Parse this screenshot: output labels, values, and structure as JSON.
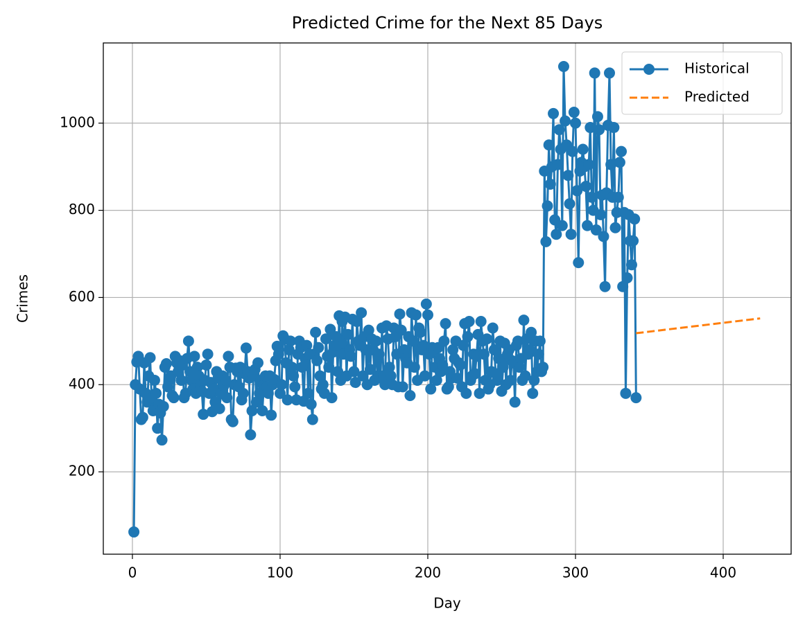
{
  "chart_data": {
    "type": "line",
    "title": "Predicted Crime for the Next 85 Days",
    "x_label": "Day",
    "y_label": "Crimes",
    "xlim": [
      -19.7,
      446
    ],
    "ylim": [
      11,
      1184
    ],
    "xticks": [
      0,
      100,
      200,
      300,
      400
    ],
    "yticks": [
      200,
      400,
      600,
      800,
      1000
    ],
    "grid": true,
    "legend": "upper right",
    "series": [
      {
        "name": "Historical",
        "color": "#1f77b4",
        "marker": "o",
        "linestyle": "solid",
        "x": [
          1,
          2,
          3,
          4,
          5,
          6,
          7,
          8,
          9,
          10,
          11,
          12,
          13,
          14,
          15,
          16,
          17,
          18,
          19,
          20,
          21,
          22,
          23,
          24,
          25,
          26,
          27,
          28,
          29,
          30,
          31,
          32,
          33,
          34,
          35,
          36,
          37,
          38,
          39,
          40,
          41,
          42,
          43,
          44,
          45,
          46,
          47,
          48,
          49,
          50,
          51,
          52,
          53,
          54,
          55,
          56,
          57,
          58,
          59,
          60,
          61,
          62,
          63,
          64,
          65,
          66,
          67,
          68,
          69,
          70,
          71,
          72,
          73,
          74,
          75,
          76,
          77,
          78,
          79,
          80,
          81,
          82,
          83,
          84,
          85,
          86,
          87,
          88,
          89,
          90,
          91,
          92,
          93,
          94,
          95,
          96,
          97,
          98,
          99,
          100,
          101,
          102,
          103,
          104,
          105,
          106,
          107,
          108,
          109,
          110,
          111,
          112,
          113,
          114,
          115,
          116,
          117,
          118,
          119,
          120,
          121,
          122,
          123,
          124,
          125,
          126,
          127,
          128,
          129,
          130,
          131,
          132,
          133,
          134,
          135,
          136,
          137,
          138,
          139,
          140,
          141,
          142,
          143,
          144,
          145,
          146,
          147,
          148,
          149,
          150,
          151,
          152,
          153,
          154,
          155,
          156,
          157,
          158,
          159,
          160,
          161,
          162,
          163,
          164,
          165,
          166,
          167,
          168,
          169,
          170,
          171,
          172,
          173,
          174,
          175,
          176,
          177,
          178,
          179,
          180,
          181,
          182,
          183,
          184,
          185,
          186,
          187,
          188,
          189,
          190,
          191,
          192,
          193,
          194,
          195,
          196,
          197,
          198,
          199,
          200,
          201,
          202,
          203,
          204,
          205,
          206,
          207,
          208,
          209,
          210,
          211,
          212,
          213,
          214,
          215,
          216,
          217,
          218,
          219,
          220,
          221,
          222,
          223,
          224,
          225,
          226,
          227,
          228,
          229,
          230,
          231,
          232,
          233,
          234,
          235,
          236,
          237,
          238,
          239,
          240,
          241,
          242,
          243,
          244,
          245,
          246,
          247,
          248,
          249,
          250,
          251,
          252,
          253,
          254,
          255,
          256,
          257,
          258,
          259,
          260,
          261,
          262,
          263,
          264,
          265,
          266,
          267,
          268,
          269,
          270,
          271,
          272,
          273,
          274,
          275,
          276,
          277,
          278,
          279,
          280,
          281,
          282,
          283,
          284,
          285,
          286,
          287,
          288,
          289,
          290,
          291,
          292,
          293,
          294,
          295,
          296,
          297,
          298,
          299,
          300,
          301,
          302,
          303,
          304,
          305,
          306,
          307,
          308,
          309,
          310,
          311,
          312,
          313,
          314,
          315,
          316,
          317,
          318,
          319,
          320,
          321,
          322,
          323,
          324,
          325,
          326,
          327,
          328,
          329,
          330,
          331,
          332,
          333,
          334,
          335,
          336,
          337,
          338,
          339,
          340,
          341
        ],
        "values": [
          62,
          400,
          452,
          465,
          390,
          320,
          325,
          450,
          380,
          360,
          420,
          462,
          370,
          340,
          410,
          380,
          300,
          355,
          335,
          273,
          350,
          440,
          448,
          395,
          410,
          420,
          375,
          370,
          465,
          450,
          430,
          455,
          410,
          445,
          370,
          380,
          460,
          500,
          430,
          410,
          390,
          465,
          380,
          440,
          420,
          400,
          385,
          332,
          410,
          445,
          470,
          380,
          405,
          338,
          390,
          360,
          430,
          415,
          345,
          380,
          420,
          398,
          410,
          370,
          465,
          440,
          320,
          315,
          400,
          438,
          430,
          395,
          440,
          365,
          380,
          425,
          484,
          430,
          415,
          285,
          340,
          420,
          435,
          360,
          450,
          380,
          410,
          340,
          400,
          420,
          395,
          380,
          420,
          330,
          400,
          412,
          455,
          488,
          470,
          380,
          400,
          512,
          505,
          450,
          365,
          480,
          500,
          440,
          420,
          395,
          365,
          470,
          500,
          485,
          440,
          362,
          460,
          490,
          380,
          470,
          355,
          320,
          470,
          520,
          455,
          485,
          420,
          390,
          400,
          380,
          505,
          465,
          440,
          527,
          370,
          475,
          490,
          510,
          430,
          558,
          410,
          545,
          470,
          555,
          420,
          515,
          480,
          465,
          550,
          430,
          405,
          545,
          500,
          490,
          565,
          420,
          510,
          480,
          400,
          525,
          435,
          505,
          480,
          410,
          500,
          420,
          470,
          415,
          530,
          420,
          400,
          535,
          505,
          440,
          420,
          400,
          530,
          510,
          470,
          395,
          562,
          525,
          395,
          480,
          460,
          450,
          510,
          375,
          565,
          500,
          440,
          560,
          410,
          530,
          520,
          480,
          490,
          420,
          585,
          560,
          470,
          390,
          485,
          480,
          440,
          410,
          485,
          460,
          430,
          445,
          500,
          540,
          390,
          395,
          430,
          415,
          480,
          460,
          500,
          415,
          450,
          445,
          395,
          490,
          540,
          380,
          510,
          545,
          410,
          420,
          470,
          425,
          465,
          515,
          380,
          545,
          500,
          470,
          410,
          505,
          390,
          400,
          430,
          530,
          480,
          425,
          410,
          460,
          500,
          385,
          440,
          495,
          400,
          470,
          480,
          410,
          455,
          450,
          360,
          490,
          500,
          440,
          460,
          410,
          548,
          420,
          505,
          470,
          480,
          520,
          380,
          410,
          500,
          430,
          470,
          500,
          430,
          440,
          890,
          728,
          810,
          950,
          860,
          900,
          1022,
          778,
          745,
          905,
          985,
          940,
          765,
          1130,
          1005,
          950,
          880,
          815,
          745,
          935,
          1025,
          1000,
          845,
          680,
          890,
          910,
          940,
          900,
          855,
          765,
          905,
          990,
          830,
          800,
          1115,
          755,
          1015,
          985,
          790,
          835,
          740,
          625,
          840,
          995,
          1115,
          905,
          830,
          990,
          760,
          795,
          830,
          910,
          935,
          625,
          795,
          380,
          645,
          790,
          730,
          675,
          730,
          780,
          370
        ]
      },
      {
        "name": "Predicted",
        "color": "#ff7f0e",
        "linestyle": "dashed",
        "x": [
          341,
          425
        ],
        "values": [
          518,
          552
        ]
      }
    ]
  }
}
